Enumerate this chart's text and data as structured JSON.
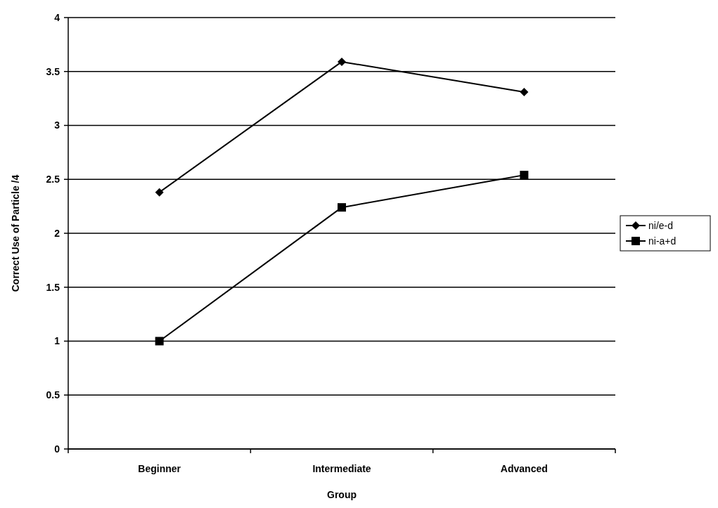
{
  "chart_data": {
    "type": "line",
    "xlabel": "Group",
    "ylabel": "Correct Use of Particle /4",
    "categories": [
      "Beginner",
      "Intermediate",
      "Advanced"
    ],
    "series": [
      {
        "name": "ni/e-d",
        "color": "#000000",
        "marker": "diamond",
        "values": [
          2.38,
          3.59,
          3.31
        ]
      },
      {
        "name": "ni-a+d",
        "color": "#000000",
        "marker": "square",
        "values": [
          1.0,
          2.24,
          2.54
        ]
      }
    ],
    "ylim": [
      0,
      4
    ],
    "yticks": [
      0,
      0.5,
      1,
      1.5,
      2,
      2.5,
      3,
      3.5,
      4
    ],
    "grid": "y",
    "legend": "right",
    "line_style": "solid"
  }
}
